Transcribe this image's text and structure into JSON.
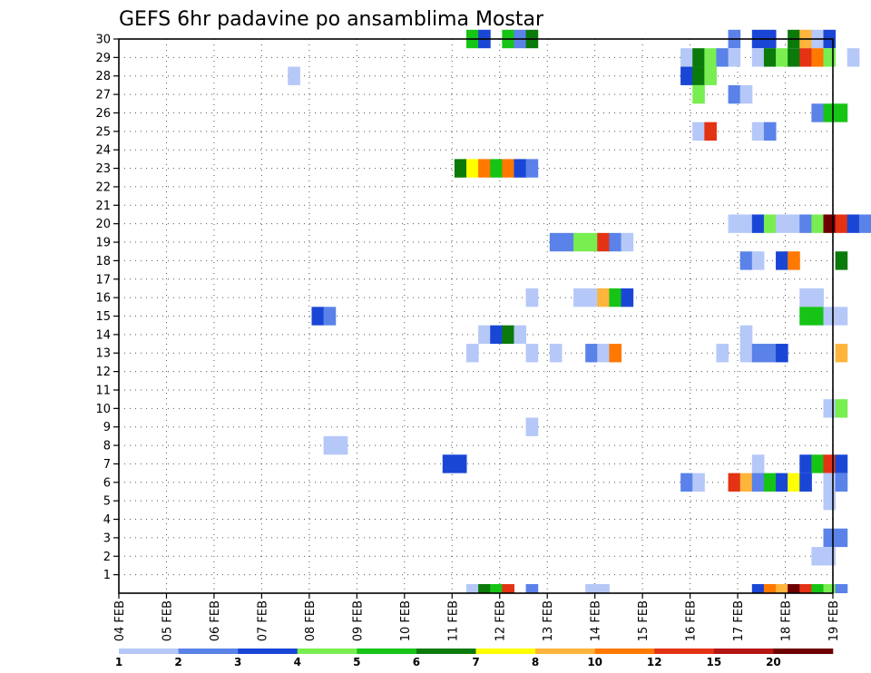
{
  "chart_data": {
    "type": "heatmap",
    "title": "GEFS 6hr padavine po ansamblima Mostar",
    "x_labels": [
      "04 FEB",
      "05 FEB",
      "06 FEB",
      "07 FEB",
      "08 FEB",
      "09 FEB",
      "10 FEB",
      "11 FEB",
      "12 FEB",
      "13 FEB",
      "14 FEB",
      "15 FEB",
      "16 FEB",
      "17 FEB",
      "18 FEB",
      "19 FEB"
    ],
    "y_labels": [
      "1",
      "2",
      "3",
      "4",
      "5",
      "6",
      "7",
      "8",
      "9",
      "10",
      "11",
      "12",
      "13",
      "14",
      "15",
      "16",
      "17",
      "18",
      "19",
      "20",
      "21",
      "22",
      "23",
      "24",
      "25",
      "26",
      "27",
      "28",
      "29",
      "30"
    ],
    "xlim": [
      0,
      15
    ],
    "ylim": [
      0,
      30
    ],
    "time_step_hours": 6,
    "grid": true,
    "colorbar": {
      "labels": [
        "1",
        "2",
        "3",
        "4",
        "5",
        "6",
        "7",
        "8",
        "10",
        "12",
        "15",
        "20"
      ],
      "colors": [
        "#b5c8f8",
        "#5a82e8",
        "#1a46d6",
        "#78ee50",
        "#16c416",
        "#0a7a0a",
        "#ffff00",
        "#ffb43c",
        "#ff7800",
        "#e43214",
        "#b41414",
        "#6e0000"
      ]
    },
    "cells": [
      {
        "row": 30,
        "x": 7.3,
        "level": 5
      },
      {
        "row": 30,
        "x": 7.55,
        "level": 3
      },
      {
        "row": 30,
        "x": 8.05,
        "level": 5
      },
      {
        "row": 30,
        "x": 8.3,
        "level": 2
      },
      {
        "row": 30,
        "x": 8.55,
        "level": 6
      },
      {
        "row": 30,
        "x": 12.8,
        "level": 2
      },
      {
        "row": 30,
        "x": 13.3,
        "level": 3
      },
      {
        "row": 30,
        "x": 13.55,
        "level": 3
      },
      {
        "row": 30,
        "x": 14.05,
        "level": 6
      },
      {
        "row": 30,
        "x": 14.3,
        "level": 8
      },
      {
        "row": 30,
        "x": 14.55,
        "level": 1
      },
      {
        "row": 30,
        "x": 14.8,
        "level": 3
      },
      {
        "row": 29,
        "x": 11.8,
        "level": 1
      },
      {
        "row": 29,
        "x": 12.05,
        "level": 6
      },
      {
        "row": 29,
        "x": 12.3,
        "level": 4
      },
      {
        "row": 29,
        "x": 12.55,
        "level": 2
      },
      {
        "row": 29,
        "x": 12.8,
        "level": 1
      },
      {
        "row": 29,
        "x": 13.3,
        "level": 1
      },
      {
        "row": 29,
        "x": 13.55,
        "level": 6
      },
      {
        "row": 29,
        "x": 13.8,
        "level": 4
      },
      {
        "row": 29,
        "x": 14.05,
        "level": 6
      },
      {
        "row": 29,
        "x": 14.3,
        "level": 10
      },
      {
        "row": 29,
        "x": 14.55,
        "level": 9
      },
      {
        "row": 29,
        "x": 14.8,
        "level": 4
      },
      {
        "row": 29,
        "x": 15.3,
        "level": 1
      },
      {
        "row": 28,
        "x": 3.55,
        "level": 1
      },
      {
        "row": 28,
        "x": 11.8,
        "level": 3
      },
      {
        "row": 28,
        "x": 12.05,
        "level": 6
      },
      {
        "row": 28,
        "x": 12.3,
        "level": 4
      },
      {
        "row": 27,
        "x": 12.05,
        "level": 4
      },
      {
        "row": 27,
        "x": 12.8,
        "level": 2
      },
      {
        "row": 27,
        "x": 13.05,
        "level": 1
      },
      {
        "row": 26,
        "x": 14.55,
        "level": 2
      },
      {
        "row": 26,
        "x": 14.8,
        "level": 5
      },
      {
        "row": 26,
        "x": 15.05,
        "level": 5
      },
      {
        "row": 25,
        "x": 12.05,
        "level": 1
      },
      {
        "row": 25,
        "x": 12.3,
        "level": 10
      },
      {
        "row": 25,
        "x": 13.3,
        "level": 1
      },
      {
        "row": 25,
        "x": 13.55,
        "level": 2
      },
      {
        "row": 23,
        "x": 7.05,
        "level": 6
      },
      {
        "row": 23,
        "x": 7.3,
        "level": 7
      },
      {
        "row": 23,
        "x": 7.55,
        "level": 9
      },
      {
        "row": 23,
        "x": 7.8,
        "level": 5
      },
      {
        "row": 23,
        "x": 8.05,
        "level": 9
      },
      {
        "row": 23,
        "x": 8.3,
        "level": 3
      },
      {
        "row": 23,
        "x": 8.55,
        "level": 2
      },
      {
        "row": 20,
        "x": 12.8,
        "level": 1
      },
      {
        "row": 20,
        "x": 13.05,
        "level": 1
      },
      {
        "row": 20,
        "x": 13.3,
        "level": 3
      },
      {
        "row": 20,
        "x": 13.55,
        "level": 4
      },
      {
        "row": 20,
        "x": 13.8,
        "level": 1
      },
      {
        "row": 20,
        "x": 14.05,
        "level": 1
      },
      {
        "row": 20,
        "x": 14.3,
        "level": 2
      },
      {
        "row": 20,
        "x": 14.55,
        "level": 4
      },
      {
        "row": 20,
        "x": 14.8,
        "level": 12
      },
      {
        "row": 20,
        "x": 15.05,
        "level": 10
      },
      {
        "row": 20,
        "x": 15.3,
        "level": 3
      },
      {
        "row": 20,
        "x": 15.55,
        "level": 2
      },
      {
        "row": 19,
        "x": 9.05,
        "level": 2
      },
      {
        "row": 19,
        "x": 9.3,
        "level": 2
      },
      {
        "row": 19,
        "x": 9.55,
        "level": 4
      },
      {
        "row": 19,
        "x": 9.8,
        "level": 4
      },
      {
        "row": 19,
        "x": 10.05,
        "level": 10
      },
      {
        "row": 19,
        "x": 10.3,
        "level": 2
      },
      {
        "row": 19,
        "x": 10.55,
        "level": 1
      },
      {
        "row": 18,
        "x": 13.05,
        "level": 2
      },
      {
        "row": 18,
        "x": 13.3,
        "level": 1
      },
      {
        "row": 18,
        "x": 13.8,
        "level": 3
      },
      {
        "row": 18,
        "x": 14.05,
        "level": 9
      },
      {
        "row": 18,
        "x": 15.05,
        "level": 6
      },
      {
        "row": 16,
        "x": 8.55,
        "level": 1
      },
      {
        "row": 16,
        "x": 9.55,
        "level": 1
      },
      {
        "row": 16,
        "x": 9.8,
        "level": 1
      },
      {
        "row": 16,
        "x": 10.05,
        "level": 8
      },
      {
        "row": 16,
        "x": 10.3,
        "level": 5
      },
      {
        "row": 16,
        "x": 10.55,
        "level": 3
      },
      {
        "row": 16,
        "x": 14.3,
        "level": 1
      },
      {
        "row": 16,
        "x": 14.55,
        "level": 1
      },
      {
        "row": 15,
        "x": 4.05,
        "level": 3
      },
      {
        "row": 15,
        "x": 4.3,
        "level": 2
      },
      {
        "row": 15,
        "x": 14.3,
        "level": 5
      },
      {
        "row": 15,
        "x": 14.55,
        "level": 5
      },
      {
        "row": 15,
        "x": 14.8,
        "level": 1
      },
      {
        "row": 15,
        "x": 15.05,
        "level": 1
      },
      {
        "row": 14,
        "x": 7.55,
        "level": 1
      },
      {
        "row": 14,
        "x": 7.8,
        "level": 3
      },
      {
        "row": 14,
        "x": 8.05,
        "level": 6
      },
      {
        "row": 14,
        "x": 8.3,
        "level": 1
      },
      {
        "row": 14,
        "x": 13.05,
        "level": 1
      },
      {
        "row": 13,
        "x": 7.3,
        "level": 1
      },
      {
        "row": 13,
        "x": 8.55,
        "level": 1
      },
      {
        "row": 13,
        "x": 9.05,
        "level": 1
      },
      {
        "row": 13,
        "x": 9.8,
        "level": 2
      },
      {
        "row": 13,
        "x": 10.05,
        "level": 1
      },
      {
        "row": 13,
        "x": 10.3,
        "level": 9
      },
      {
        "row": 13,
        "x": 12.55,
        "level": 1
      },
      {
        "row": 13,
        "x": 13.05,
        "level": 1
      },
      {
        "row": 13,
        "x": 13.3,
        "level": 2
      },
      {
        "row": 13,
        "x": 13.55,
        "level": 2
      },
      {
        "row": 13,
        "x": 13.8,
        "level": 3
      },
      {
        "row": 13,
        "x": 15.05,
        "level": 8
      },
      {
        "row": 10,
        "x": 14.8,
        "level": 1
      },
      {
        "row": 10,
        "x": 15.05,
        "level": 4
      },
      {
        "row": 9,
        "x": 8.55,
        "level": 1
      },
      {
        "row": 8,
        "x": 4.3,
        "level": 1
      },
      {
        "row": 8,
        "x": 4.55,
        "level": 1
      },
      {
        "row": 7,
        "x": 6.8,
        "level": 3
      },
      {
        "row": 7,
        "x": 7.05,
        "level": 3
      },
      {
        "row": 7,
        "x": 13.3,
        "level": 1
      },
      {
        "row": 7,
        "x": 14.3,
        "level": 3
      },
      {
        "row": 7,
        "x": 14.55,
        "level": 5
      },
      {
        "row": 7,
        "x": 14.8,
        "level": 10
      },
      {
        "row": 7,
        "x": 15.05,
        "level": 3
      },
      {
        "row": 6,
        "x": 11.8,
        "level": 2
      },
      {
        "row": 6,
        "x": 12.05,
        "level": 1
      },
      {
        "row": 6,
        "x": 12.8,
        "level": 10
      },
      {
        "row": 6,
        "x": 13.05,
        "level": 8
      },
      {
        "row": 6,
        "x": 13.3,
        "level": 2
      },
      {
        "row": 6,
        "x": 13.55,
        "level": 5
      },
      {
        "row": 6,
        "x": 13.8,
        "level": 3
      },
      {
        "row": 6,
        "x": 14.05,
        "level": 7
      },
      {
        "row": 6,
        "x": 14.3,
        "level": 3
      },
      {
        "row": 6,
        "x": 14.8,
        "level": 1
      },
      {
        "row": 6,
        "x": 15.05,
        "level": 2
      },
      {
        "row": 5,
        "x": 14.8,
        "level": 1
      },
      {
        "row": 3,
        "x": 14.8,
        "level": 2
      },
      {
        "row": 3,
        "x": 15.05,
        "level": 2
      },
      {
        "row": 2,
        "x": 14.55,
        "level": 1
      },
      {
        "row": 2,
        "x": 14.8,
        "level": 1
      },
      {
        "row": 0,
        "x": 7.3,
        "level": 1
      },
      {
        "row": 0,
        "x": 7.55,
        "level": 6
      },
      {
        "row": 0,
        "x": 7.8,
        "level": 5
      },
      {
        "row": 0,
        "x": 8.05,
        "level": 10
      },
      {
        "row": 0,
        "x": 8.55,
        "level": 2
      },
      {
        "row": 0,
        "x": 9.8,
        "level": 1
      },
      {
        "row": 0,
        "x": 10.05,
        "level": 1
      },
      {
        "row": 0,
        "x": 13.3,
        "level": 3
      },
      {
        "row": 0,
        "x": 13.55,
        "level": 9
      },
      {
        "row": 0,
        "x": 13.8,
        "level": 8
      },
      {
        "row": 0,
        "x": 14.05,
        "level": 12
      },
      {
        "row": 0,
        "x": 14.3,
        "level": 10
      },
      {
        "row": 0,
        "x": 14.55,
        "level": 5
      },
      {
        "row": 0,
        "x": 14.8,
        "level": 4
      },
      {
        "row": 0,
        "x": 15.05,
        "level": 2
      }
    ]
  }
}
